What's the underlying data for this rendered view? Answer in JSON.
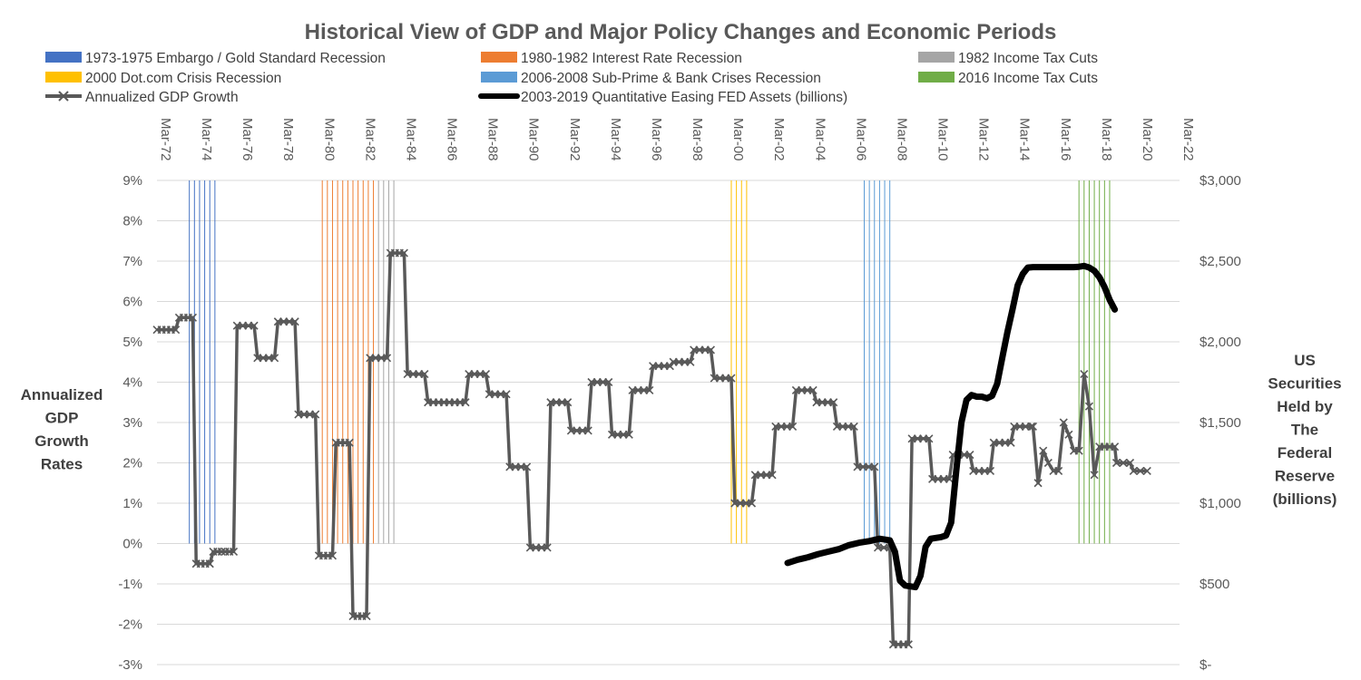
{
  "chart_data": {
    "type": "line",
    "title": "Historical View of GDP and Major Policy Changes and Economic Periods",
    "ylabel_left": [
      "Annualized",
      "GDP",
      "Growth",
      "Rates"
    ],
    "ylabel_right": [
      "US",
      "Securities",
      "Held by",
      "The",
      "Federal",
      "Reserve",
      "(billions)"
    ],
    "y_left_range": [
      -3,
      9
    ],
    "y_left_ticks": [
      "9%",
      "8%",
      "7%",
      "6%",
      "5%",
      "4%",
      "3%",
      "2%",
      "1%",
      "0%",
      "-1%",
      "-2%",
      "-3%"
    ],
    "y_right_range": [
      0,
      3000
    ],
    "y_right_ticks": [
      "$3,000",
      "$2,500",
      "$2,000",
      "$1,500",
      "$1,000",
      "$500",
      "$-"
    ],
    "x_range": [
      1972.167,
      2022.167
    ],
    "x_tick_labels": [
      "Mar-72",
      "Mar-74",
      "Mar-76",
      "Mar-78",
      "Mar-80",
      "Mar-82",
      "Mar-84",
      "Mar-86",
      "Mar-88",
      "Mar-90",
      "Mar-92",
      "Mar-94",
      "Mar-96",
      "Mar-98",
      "Mar-00",
      "Mar-02",
      "Mar-04",
      "Mar-06",
      "Mar-08",
      "Mar-10",
      "Mar-12",
      "Mar-14",
      "Mar-16",
      "Mar-18",
      "Mar-20",
      "Mar-22"
    ],
    "gridlines": true,
    "legend_position": "top",
    "legend": [
      {
        "label": "1973-1975 Embargo / Gold Standard Recession",
        "color": "#4472c4",
        "kind": "bar"
      },
      {
        "label": "1980-1982 Interest Rate Recession",
        "color": "#ed7d31",
        "kind": "bar"
      },
      {
        "label": "1982 Income Tax Cuts",
        "color": "#a5a5a5",
        "kind": "bar"
      },
      {
        "label": "2000 Dot.com Crisis Recession",
        "color": "#ffc000",
        "kind": "bar"
      },
      {
        "label": "2006-2008 Sub-Prime & Bank Crises Recession",
        "color": "#5b9bd5",
        "kind": "bar"
      },
      {
        "label": "2016 Income Tax Cuts",
        "color": "#70ad47",
        "kind": "bar"
      },
      {
        "label": "Annualized  GDP Growth",
        "color": "#595959",
        "kind": "line-marker"
      },
      {
        "label": "2003-2019 Quantitative Easing FED Assets (billions)",
        "color": "#000000",
        "kind": "line"
      }
    ],
    "periods": [
      {
        "name": "1973-1975 Embargo / Gold Standard Recession",
        "color": "#4472c4",
        "x": [
          1973.75,
          1974.0,
          1974.25,
          1974.5,
          1974.75,
          1975.0
        ],
        "y_from": 0,
        "y_to": 9
      },
      {
        "name": "1980-1982 Interest Rate Recession",
        "color": "#ed7d31",
        "x": [
          1980.25,
          1980.5,
          1980.75,
          1981.0,
          1981.25,
          1981.5,
          1981.75,
          1982.0,
          1982.25,
          1982.5,
          1982.75
        ],
        "y_from": 0,
        "y_to": 9
      },
      {
        "name": "1982 Income Tax Cuts",
        "color": "#a5a5a5",
        "x": [
          1983.0,
          1983.25,
          1983.5,
          1983.75
        ],
        "y_from": 0,
        "y_to": 9
      },
      {
        "name": "2000 Dot.com Crisis Recession",
        "color": "#ffc000",
        "x": [
          2000.25,
          2000.5,
          2000.75,
          2001.0
        ],
        "y_from": 0,
        "y_to": 9
      },
      {
        "name": "2006-2008 Sub-Prime & Bank Crises Recession",
        "color": "#5b9bd5",
        "x": [
          2006.75,
          2007.0,
          2007.25,
          2007.5,
          2007.75,
          2008.0
        ],
        "y_from": 0,
        "y_to": 9
      },
      {
        "name": "2016 Income Tax Cuts",
        "color": "#70ad47",
        "x": [
          2017.25,
          2017.5,
          2017.75,
          2018.0,
          2018.25,
          2018.5,
          2018.75
        ],
        "y_from": 0,
        "y_to": 9
      }
    ],
    "series": [
      {
        "name": "Annualized  GDP Growth",
        "axis": "left",
        "segments": [
          {
            "x": [
              1972.167,
              1973.083
            ],
            "y": 5.3
          },
          {
            "x": [
              1973.25,
              1973.917
            ],
            "y": 5.6
          },
          {
            "x": [
              1974.083,
              1974.75
            ],
            "y": -0.5
          },
          {
            "x": [
              1974.917,
              1975.333
            ],
            "y": -0.2
          },
          {
            "x": [
              1975.5,
              1975.917
            ],
            "y": -0.2
          },
          {
            "x": [
              1976.083,
              1976.917
            ],
            "y": 5.4
          },
          {
            "x": [
              1977.083,
              1977.917
            ],
            "y": 4.6
          },
          {
            "x": [
              1978.083,
              1978.917
            ],
            "y": 5.5
          },
          {
            "x": [
              1979.083,
              1979.917
            ],
            "y": 3.2
          },
          {
            "x": [
              1980.083,
              1980.75
            ],
            "y": -0.3
          },
          {
            "x": [
              1980.917,
              1981.583
            ],
            "y": 2.5
          },
          {
            "x": [
              1981.75,
              1982.417
            ],
            "y": -1.8
          },
          {
            "x": [
              1982.583,
              1983.417
            ],
            "y": 4.6
          },
          {
            "x": [
              1983.583,
              1984.25
            ],
            "y": 7.2
          },
          {
            "x": [
              1984.417,
              1985.25
            ],
            "y": 4.2
          },
          {
            "x": [
              1985.417,
              1987.25
            ],
            "y": 3.5
          },
          {
            "x": [
              1987.417,
              1988.25
            ],
            "y": 4.2
          },
          {
            "x": [
              1988.417,
              1989.25
            ],
            "y": 3.7
          },
          {
            "x": [
              1989.417,
              1990.25
            ],
            "y": 1.9
          },
          {
            "x": [
              1990.417,
              1991.25
            ],
            "y": -0.1
          },
          {
            "x": [
              1991.417,
              1992.25
            ],
            "y": 3.5
          },
          {
            "x": [
              1992.417,
              1993.25
            ],
            "y": 2.8
          },
          {
            "x": [
              1993.417,
              1994.25
            ],
            "y": 4.0
          },
          {
            "x": [
              1994.417,
              1995.25
            ],
            "y": 2.7
          },
          {
            "x": [
              1995.417,
              1996.25
            ],
            "y": 3.8
          },
          {
            "x": [
              1996.417,
              1997.25
            ],
            "y": 4.4
          },
          {
            "x": [
              1997.417,
              1998.25
            ],
            "y": 4.5
          },
          {
            "x": [
              1998.417,
              1999.25
            ],
            "y": 4.8
          },
          {
            "x": [
              1999.417,
              2000.25
            ],
            "y": 4.1
          },
          {
            "x": [
              2000.417,
              2001.25
            ],
            "y": 1.0
          },
          {
            "x": [
              2001.417,
              2002.25
            ],
            "y": 1.7
          },
          {
            "x": [
              2002.417,
              2003.25
            ],
            "y": 2.9
          },
          {
            "x": [
              2003.417,
              2004.25
            ],
            "y": 3.8
          },
          {
            "x": [
              2004.417,
              2005.25
            ],
            "y": 3.5
          },
          {
            "x": [
              2005.417,
              2006.25
            ],
            "y": 2.9
          },
          {
            "x": [
              2006.417,
              2007.25
            ],
            "y": 1.9
          },
          {
            "x": [
              2007.417,
              2008.0
            ],
            "y": -0.1
          },
          {
            "x": [
              2008.167,
              2008.917
            ],
            "y": -2.5
          },
          {
            "x": [
              2009.083,
              2009.917
            ],
            "y": 2.6
          },
          {
            "x": [
              2010.083,
              2010.917
            ],
            "y": 1.6
          },
          {
            "x": [
              2011.083,
              2011.917
            ],
            "y": 2.2
          },
          {
            "x": [
              2012.083,
              2012.917
            ],
            "y": 1.8
          },
          {
            "x": [
              2013.083,
              2013.917
            ],
            "y": 2.5
          },
          {
            "x": [
              2014.083,
              2014.917
            ],
            "y": 2.9
          }
        ],
        "tail": [
          [
            2015.0,
            2.9
          ],
          [
            2015.25,
            1.5
          ],
          [
            2015.5,
            2.3
          ],
          [
            2015.75,
            2.0
          ],
          [
            2016.0,
            1.8
          ],
          [
            2016.25,
            1.8
          ],
          [
            2016.5,
            3.0
          ],
          [
            2016.75,
            2.7
          ],
          [
            2017.0,
            2.3
          ],
          [
            2017.25,
            2.3
          ],
          [
            2017.5,
            4.2
          ],
          [
            2017.75,
            3.4
          ],
          [
            2018.0,
            1.7
          ],
          [
            2018.25,
            2.4
          ],
          [
            2018.5,
            2.4
          ],
          [
            2018.75,
            2.4
          ],
          [
            2019.0,
            2.4
          ],
          [
            2019.083,
            2.0
          ],
          [
            2019.417,
            2.0
          ],
          [
            2019.75,
            2.0
          ],
          [
            2019.917,
            1.8
          ],
          [
            2020.25,
            1.8
          ],
          [
            2020.583,
            1.8
          ]
        ]
      },
      {
        "name": "2003-2019 Quantitative Easing FED Assets (billions)",
        "axis": "right",
        "points": [
          [
            2003.0,
            630
          ],
          [
            2003.5,
            650
          ],
          [
            2004.0,
            665
          ],
          [
            2004.5,
            685
          ],
          [
            2005.0,
            700
          ],
          [
            2005.5,
            715
          ],
          [
            2006.0,
            740
          ],
          [
            2006.5,
            755
          ],
          [
            2007.0,
            765
          ],
          [
            2007.5,
            780
          ],
          [
            2008.0,
            770
          ],
          [
            2008.25,
            700
          ],
          [
            2008.5,
            520
          ],
          [
            2008.75,
            490
          ],
          [
            2009.25,
            480
          ],
          [
            2009.5,
            550
          ],
          [
            2009.75,
            730
          ],
          [
            2010.0,
            780
          ],
          [
            2010.5,
            790
          ],
          [
            2010.75,
            800
          ],
          [
            2011.0,
            880
          ],
          [
            2011.25,
            1200
          ],
          [
            2011.5,
            1500
          ],
          [
            2011.75,
            1640
          ],
          [
            2012.0,
            1670
          ],
          [
            2012.25,
            1660
          ],
          [
            2012.5,
            1660
          ],
          [
            2012.75,
            1650
          ],
          [
            2013.0,
            1665
          ],
          [
            2013.25,
            1740
          ],
          [
            2013.5,
            1900
          ],
          [
            2013.75,
            2060
          ],
          [
            2014.0,
            2200
          ],
          [
            2014.25,
            2350
          ],
          [
            2014.5,
            2420
          ],
          [
            2014.75,
            2460
          ],
          [
            2015.0,
            2463
          ],
          [
            2015.5,
            2463
          ],
          [
            2016.0,
            2463
          ],
          [
            2016.5,
            2463
          ],
          [
            2017.0,
            2463
          ],
          [
            2017.25,
            2465
          ],
          [
            2017.5,
            2470
          ],
          [
            2017.75,
            2460
          ],
          [
            2018.0,
            2440
          ],
          [
            2018.25,
            2400
          ],
          [
            2018.5,
            2340
          ],
          [
            2018.75,
            2260
          ],
          [
            2019.0,
            2200
          ]
        ]
      }
    ]
  }
}
